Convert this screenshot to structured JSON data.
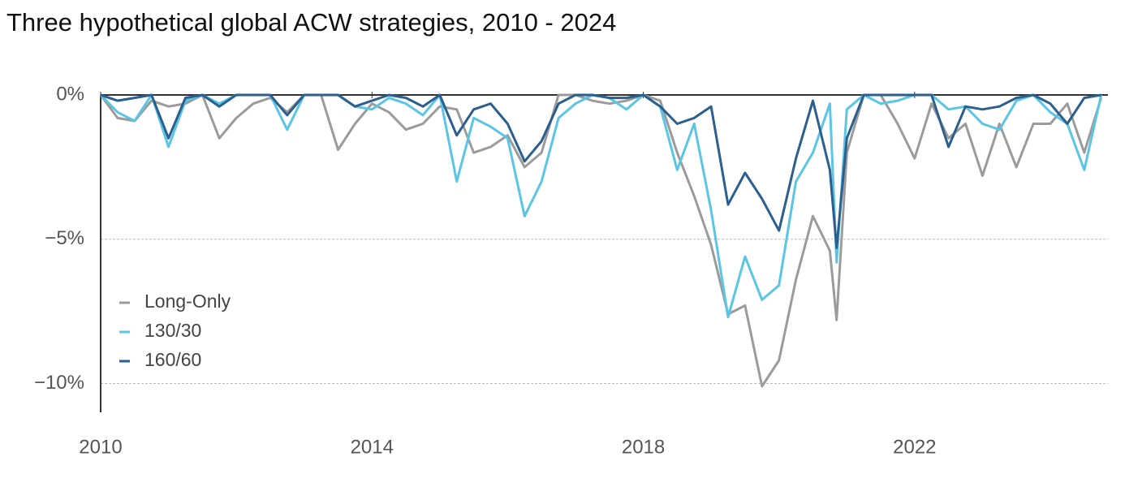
{
  "chart_data": {
    "type": "line",
    "title": "Three hypothetical global ACW strategies, 2010 - 2024",
    "x": [
      2010,
      2010.25,
      2010.5,
      2010.75,
      2011,
      2011.25,
      2011.5,
      2011.75,
      2012,
      2012.25,
      2012.5,
      2012.75,
      2013,
      2013.25,
      2013.5,
      2013.75,
      2014,
      2014.25,
      2014.5,
      2014.75,
      2015,
      2015.25,
      2015.5,
      2015.75,
      2016,
      2016.25,
      2016.5,
      2016.75,
      2017,
      2017.25,
      2017.5,
      2017.75,
      2018,
      2018.25,
      2018.5,
      2018.75,
      2019,
      2019.25,
      2019.5,
      2019.75,
      2020,
      2020.25,
      2020.5,
      2020.75,
      2020.85,
      2021,
      2021.25,
      2021.5,
      2021.75,
      2022,
      2022.25,
      2022.5,
      2022.75,
      2023,
      2023.25,
      2023.5,
      2023.75,
      2024,
      2024.25,
      2024.5,
      2024.75
    ],
    "series": [
      {
        "name": "Long-Only",
        "color": "#9b9b9b",
        "values": [
          0,
          -0.8,
          -0.9,
          -0.2,
          -0.4,
          -0.3,
          0,
          -1.5,
          -0.8,
          -0.3,
          -0.1,
          -0.6,
          0,
          0,
          -1.9,
          -1.0,
          -0.3,
          -0.6,
          -1.2,
          -1.0,
          -0.4,
          -0.5,
          -2.0,
          -1.8,
          -1.4,
          -2.5,
          -2.0,
          0,
          0,
          -0.2,
          -0.3,
          -0.2,
          0,
          -0.2,
          -2.0,
          -3.5,
          -5.2,
          -7.6,
          -7.3,
          -10.1,
          -9.2,
          -6.4,
          -4.2,
          -5.4,
          -7.8,
          -2.0,
          0,
          0,
          -1.0,
          -2.2,
          -0.3,
          -1.5,
          -1.0,
          -2.8,
          -1.0,
          -2.5,
          -1.0,
          -1.0,
          -0.3,
          -2.0,
          -0.1
        ]
      },
      {
        "name": "130/30",
        "color": "#5bc5e5",
        "values": [
          0,
          -0.6,
          -0.9,
          0,
          -1.8,
          -0.2,
          0,
          -0.3,
          0,
          0,
          0,
          -1.2,
          0,
          0,
          0,
          -0.4,
          -0.5,
          -0.1,
          -0.3,
          -0.7,
          0,
          -3.0,
          -0.8,
          -1.1,
          -1.5,
          -4.2,
          -3.0,
          -0.8,
          -0.3,
          0,
          -0.1,
          -0.5,
          0,
          -0.4,
          -2.6,
          -1.0,
          -4.0,
          -7.7,
          -5.6,
          -7.1,
          -6.6,
          -3.0,
          -2.0,
          -0.3,
          -5.8,
          -0.5,
          0,
          -0.3,
          -0.2,
          0,
          0,
          -0.5,
          -0.4,
          -1.0,
          -1.2,
          -0.2,
          0,
          -0.6,
          -1.0,
          -2.6,
          0
        ]
      },
      {
        "name": "160/60",
        "color": "#2a5f8f",
        "values": [
          0,
          -0.2,
          -0.1,
          0,
          -1.5,
          -0.1,
          0,
          -0.4,
          0,
          0,
          0,
          -0.7,
          0,
          0,
          0,
          -0.4,
          -0.2,
          0,
          -0.1,
          -0.4,
          0,
          -1.4,
          -0.5,
          -0.3,
          -1.0,
          -2.3,
          -1.6,
          -0.3,
          0,
          0,
          -0.1,
          -0.1,
          0,
          -0.4,
          -1.0,
          -0.8,
          -0.4,
          -3.8,
          -2.7,
          -3.6,
          -4.7,
          -2.2,
          -0.2,
          -2.6,
          -5.3,
          -1.5,
          0,
          0,
          0,
          0,
          0,
          -1.8,
          -0.4,
          -0.5,
          -0.4,
          -0.1,
          0,
          -0.3,
          -1.0,
          -0.1,
          0
        ]
      }
    ],
    "xlim": [
      2010,
      2024.85
    ],
    "xticks": [
      2010,
      2014,
      2018,
      2022
    ],
    "ylim": [
      -11,
      0
    ],
    "yticks": [
      {
        "value": 0,
        "label": "0%"
      },
      {
        "value": -5,
        "label": "−5%"
      },
      {
        "value": -10,
        "label": "−10%"
      }
    ],
    "grid": true,
    "legend": "left"
  }
}
